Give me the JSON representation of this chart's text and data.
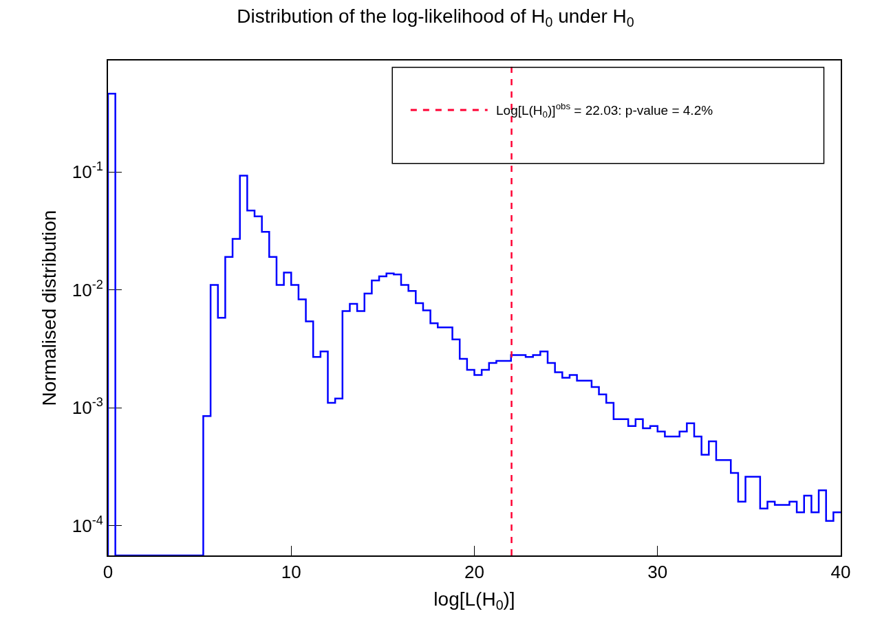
{
  "chart_data": {
    "type": "histogram",
    "title": "Distribution of the log-likelihood of H$_{0}$ under H$_{0}$",
    "xlabel": "log[L(H$_{0}$)]",
    "ylabel": "Normalised distribution",
    "bins": [
      0,
      0.4,
      0.8,
      1.2,
      1.6,
      2.0,
      2.4,
      2.8,
      3.2,
      3.6,
      4.0,
      4.4,
      4.8,
      5.2,
      5.6,
      6.0,
      6.4,
      6.8,
      7.2,
      7.6,
      8.0,
      8.4,
      8.8,
      9.2,
      9.6,
      10.0,
      10.4,
      10.8,
      11.2,
      11.6,
      12.0,
      12.4,
      12.8,
      13.2,
      13.6,
      14.0,
      14.4,
      14.8,
      15.2,
      15.6,
      16.0,
      16.4,
      16.8,
      17.2,
      17.6,
      18.0,
      18.4,
      18.8,
      19.2,
      19.6,
      20.0,
      20.4,
      20.8,
      21.2,
      21.6,
      22.0,
      22.4,
      22.8,
      23.2,
      23.6,
      24.0,
      24.4,
      24.8,
      25.2,
      25.6,
      26.0,
      26.4,
      26.8,
      27.2,
      27.6,
      28.0,
      28.4,
      28.8,
      29.2,
      29.6,
      30.0,
      30.4,
      30.8,
      31.2,
      31.6,
      32.0,
      32.4,
      32.8,
      33.2,
      33.6,
      34.0,
      34.4,
      34.8,
      35.2,
      35.6,
      36.0,
      36.4,
      36.8,
      37.2,
      37.6,
      38.0,
      38.4,
      38.8,
      39.2,
      39.6,
      40.0
    ],
    "series": [
      {
        "color": "#0000ff",
        "values": [
          0.46,
          null,
          null,
          null,
          null,
          null,
          null,
          null,
          null,
          null,
          null,
          null,
          null,
          0.00085,
          0.011,
          0.0058,
          0.019,
          0.027,
          0.093,
          0.047,
          0.042,
          0.031,
          0.019,
          0.011,
          0.014,
          0.011,
          0.0083,
          0.0054,
          0.0027,
          0.003,
          0.0011,
          0.0012,
          0.0066,
          0.0076,
          0.0066,
          0.0093,
          0.012,
          0.013,
          0.0138,
          0.0135,
          0.011,
          0.0098,
          0.0077,
          0.0067,
          0.0052,
          0.0048,
          0.0048,
          0.0038,
          0.0026,
          0.0021,
          0.0019,
          0.0021,
          0.0024,
          0.0025,
          0.0025,
          0.0028,
          0.0028,
          0.0027,
          0.0028,
          0.003,
          0.0024,
          0.002,
          0.0018,
          0.0019,
          0.0017,
          0.0017,
          0.0015,
          0.0013,
          0.0011,
          0.0008,
          0.0008,
          0.0007,
          0.0008,
          0.00067,
          0.0007,
          0.00063,
          0.00057,
          0.00057,
          0.00063,
          0.00074,
          0.00057,
          0.0004,
          0.00052,
          0.00036,
          0.00036,
          0.00028,
          0.00016,
          0.00026,
          0.00026,
          0.00014,
          0.00016,
          0.00015,
          0.00015,
          0.00016,
          0.00013,
          0.00018,
          0.00013,
          0.0002,
          0.00011,
          0.00013
        ]
      }
    ],
    "xlim": [
      0,
      40
    ],
    "xticks": [
      0,
      10,
      20,
      30,
      40
    ],
    "ylim": [
      5.6e-05,
      0.88
    ],
    "log": true,
    "yticks": [
      {
        "value": 0.0001,
        "label": "10$^{-4}$"
      },
      {
        "value": 0.001,
        "label": "10$^{-3}$"
      },
      {
        "value": 0.01,
        "label": "10$^{-2}$"
      },
      {
        "value": 0.1,
        "label": "10$^{-1}$"
      }
    ],
    "ref_lines": [
      {
        "axis": "x",
        "value": 22.03,
        "label": "Log[L(H$_{0}$)]$^{obs}$ = 22.03: p-value = 4.2%",
        "color": "#ff0033",
        "line_style": "dashed"
      }
    ],
    "legend": "top right"
  }
}
